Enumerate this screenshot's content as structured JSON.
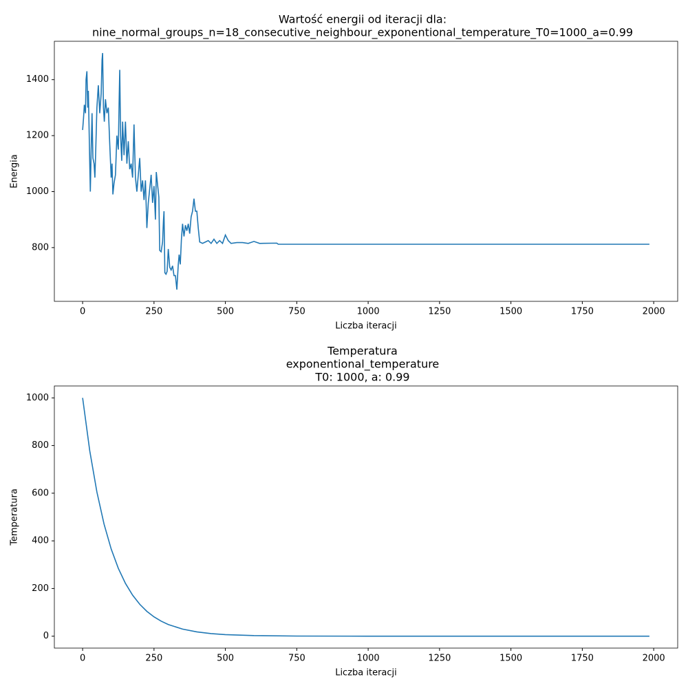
{
  "chart_data": [
    {
      "type": "line",
      "title": [
        "Wartość energii od iteracji dla:",
        "nine_normal_groups_n=18_consecutive_neighbour_exponentional_temperature_T0=1000_a=0.99"
      ],
      "xlabel": "Liczba iteracji",
      "ylabel": "Energia",
      "xlim": [
        -99,
        2084
      ],
      "ylim": [
        608,
        1537
      ],
      "xticks": [
        0,
        250,
        500,
        750,
        1000,
        1250,
        1500,
        1750,
        2000
      ],
      "yticks": [
        800,
        1000,
        1200,
        1400
      ],
      "series": [
        {
          "color": "#1f77b4",
          "x": [
            0,
            3,
            6,
            10,
            12,
            15,
            18,
            20,
            22,
            25,
            27,
            30,
            33,
            36,
            40,
            43,
            46,
            50,
            55,
            60,
            65,
            68,
            70,
            73,
            76,
            80,
            85,
            90,
            95,
            100,
            103,
            106,
            110,
            115,
            120,
            125,
            128,
            130,
            133,
            137,
            140,
            145,
            150,
            155,
            160,
            165,
            170,
            175,
            180,
            185,
            190,
            195,
            200,
            205,
            210,
            215,
            220,
            225,
            230,
            235,
            240,
            245,
            250,
            255,
            258,
            262,
            267,
            270,
            275,
            280,
            283,
            285,
            288,
            292,
            296,
            300,
            305,
            310,
            315,
            320,
            325,
            330,
            335,
            338,
            342,
            346,
            350,
            355,
            360,
            365,
            370,
            375,
            380,
            385,
            390,
            395,
            400,
            405,
            410,
            420,
            430,
            440,
            450,
            460,
            470,
            480,
            490,
            500,
            510,
            520,
            540,
            560,
            580,
            600,
            620,
            680,
            685,
            1985
          ],
          "values": [
            1220,
            1260,
            1310,
            1280,
            1400,
            1430,
            1300,
            1360,
            1260,
            1100,
            1000,
            1150,
            1280,
            1120,
            1100,
            1050,
            1150,
            1300,
            1380,
            1280,
            1350,
            1470,
            1495,
            1300,
            1250,
            1330,
            1280,
            1300,
            1170,
            1050,
            1100,
            990,
            1030,
            1060,
            1200,
            1150,
            1330,
            1435,
            1200,
            1110,
            1250,
            1130,
            1250,
            1100,
            1180,
            1080,
            1100,
            1050,
            1240,
            1050,
            1000,
            1060,
            1120,
            1000,
            1040,
            970,
            1040,
            870,
            960,
            1010,
            1060,
            960,
            1020,
            900,
            1070,
            1030,
            980,
            790,
            785,
            820,
            895,
            930,
            710,
            705,
            715,
            795,
            730,
            720,
            735,
            700,
            700,
            650,
            740,
            775,
            740,
            830,
            885,
            840,
            880,
            860,
            885,
            850,
            910,
            930,
            975,
            930,
            930,
            870,
            820,
            815,
            820,
            825,
            815,
            830,
            815,
            825,
            815,
            845,
            825,
            815,
            818,
            818,
            815,
            822,
            815,
            816,
            812,
            812
          ]
        }
      ]
    },
    {
      "type": "line",
      "title": [
        "Temperatura",
        "exponentional_temperature",
        "T0: 1000, a: 0.99"
      ],
      "xlabel": "Liczba iteracji",
      "ylabel": "Temperatura",
      "xlim": [
        -99,
        2084
      ],
      "ylim": [
        -50,
        1050
      ],
      "xticks": [
        0,
        250,
        500,
        750,
        1000,
        1250,
        1500,
        1750,
        2000
      ],
      "yticks": [
        0,
        200,
        400,
        600,
        800,
        1000
      ],
      "series": [
        {
          "color": "#1f77b4",
          "x": [
            0,
            25,
            50,
            75,
            100,
            125,
            150,
            175,
            200,
            225,
            250,
            275,
            300,
            350,
            400,
            450,
            500,
            600,
            750,
            1000,
            1500,
            1985
          ],
          "values": [
            1000,
            777.8,
            605.0,
            470.6,
            366.0,
            284.7,
            221.5,
            172.3,
            134.0,
            104.2,
            81.1,
            63.1,
            49.0,
            29.7,
            18.0,
            10.9,
            6.6,
            2.4,
            0.5,
            0.04,
            0,
            0
          ]
        }
      ]
    }
  ]
}
